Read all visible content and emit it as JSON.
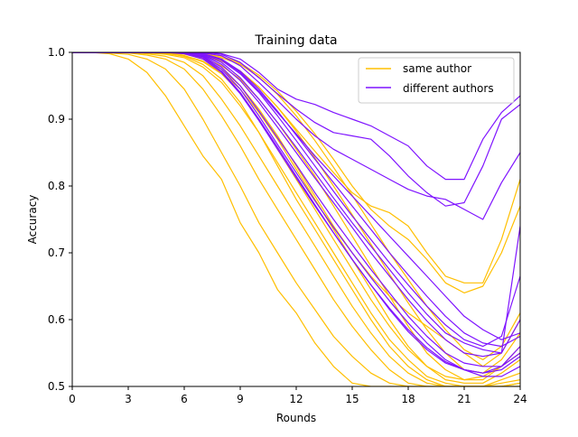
{
  "chart_data": {
    "type": "line",
    "title": "Training data",
    "xlabel": "Rounds",
    "ylabel": "Accuracy",
    "xlim": [
      0,
      24
    ],
    "ylim": [
      0.5,
      1.0
    ],
    "xticks": [
      "0",
      "3",
      "6",
      "9",
      "12",
      "15",
      "18",
      "21",
      "24"
    ],
    "yticks": [
      "0.5",
      "0.6",
      "0.7",
      "0.8",
      "0.9",
      "1.0"
    ],
    "legend": {
      "position": "upper-right",
      "entries": [
        "same author",
        "different authors"
      ]
    },
    "colors": {
      "same author": "#FFBF00",
      "different authors": "#7F14FF"
    },
    "x": [
      0,
      1,
      2,
      3,
      4,
      5,
      6,
      7,
      8,
      9,
      10,
      11,
      12,
      13,
      14,
      15,
      16,
      17,
      18,
      19,
      20,
      21,
      22,
      23,
      24
    ],
    "series": [
      {
        "name": "same author",
        "values": [
          1.0,
          1.0,
          0.998,
          0.99,
          0.97,
          0.935,
          0.89,
          0.845,
          0.81,
          0.745,
          0.7,
          0.645,
          0.61,
          0.565,
          0.53,
          0.505,
          0.5,
          0.5,
          0.5,
          0.5,
          0.5,
          0.5,
          0.5,
          0.5,
          0.5
        ]
      },
      {
        "name": "same author",
        "values": [
          1.0,
          1.0,
          0.999,
          0.997,
          0.99,
          0.975,
          0.945,
          0.9,
          0.85,
          0.8,
          0.745,
          0.7,
          0.655,
          0.615,
          0.575,
          0.545,
          0.52,
          0.505,
          0.5,
          0.5,
          0.5,
          0.5,
          0.5,
          0.5,
          0.5
        ]
      },
      {
        "name": "same author",
        "values": [
          1.0,
          1.0,
          1.0,
          0.999,
          0.996,
          0.99,
          0.975,
          0.945,
          0.905,
          0.86,
          0.81,
          0.765,
          0.72,
          0.675,
          0.63,
          0.59,
          0.555,
          0.525,
          0.505,
          0.5,
          0.5,
          0.5,
          0.5,
          0.5,
          0.505
        ]
      },
      {
        "name": "same author",
        "values": [
          1.0,
          1.0,
          1.0,
          1.0,
          0.998,
          0.994,
          0.985,
          0.965,
          0.93,
          0.89,
          0.845,
          0.8,
          0.755,
          0.71,
          0.665,
          0.62,
          0.58,
          0.545,
          0.52,
          0.505,
          0.5,
          0.5,
          0.5,
          0.505,
          0.51
        ]
      },
      {
        "name": "same author",
        "values": [
          1.0,
          1.0,
          1.0,
          1.0,
          0.999,
          0.997,
          0.992,
          0.978,
          0.955,
          0.92,
          0.88,
          0.835,
          0.79,
          0.745,
          0.7,
          0.655,
          0.61,
          0.57,
          0.54,
          0.515,
          0.505,
          0.5,
          0.5,
          0.51,
          0.52
        ]
      },
      {
        "name": "same author",
        "values": [
          1.0,
          1.0,
          1.0,
          1.0,
          1.0,
          0.998,
          0.995,
          0.987,
          0.97,
          0.945,
          0.91,
          0.87,
          0.825,
          0.78,
          0.735,
          0.69,
          0.645,
          0.6,
          0.56,
          0.53,
          0.51,
          0.505,
          0.505,
          0.52,
          0.54
        ]
      },
      {
        "name": "same author",
        "values": [
          1.0,
          1.0,
          1.0,
          1.0,
          1.0,
          0.999,
          0.997,
          0.992,
          0.98,
          0.96,
          0.93,
          0.895,
          0.855,
          0.815,
          0.77,
          0.725,
          0.68,
          0.635,
          0.59,
          0.55,
          0.525,
          0.51,
          0.51,
          0.53,
          0.56
        ]
      },
      {
        "name": "same author",
        "values": [
          1.0,
          1.0,
          1.0,
          1.0,
          1.0,
          1.0,
          0.998,
          0.995,
          0.987,
          0.972,
          0.948,
          0.918,
          0.882,
          0.842,
          0.8,
          0.757,
          0.713,
          0.668,
          0.625,
          0.585,
          0.55,
          0.525,
          0.52,
          0.54,
          0.58
        ]
      },
      {
        "name": "same author",
        "values": [
          1.0,
          1.0,
          1.0,
          1.0,
          1.0,
          1.0,
          0.999,
          0.997,
          0.992,
          0.982,
          0.963,
          0.937,
          0.905,
          0.868,
          0.828,
          0.786,
          0.743,
          0.7,
          0.66,
          0.62,
          0.585,
          0.555,
          0.54,
          0.56,
          0.61
        ]
      },
      {
        "name": "same author",
        "values": [
          1.0,
          1.0,
          1.0,
          1.0,
          1.0,
          0.999,
          0.994,
          0.982,
          0.96,
          0.925,
          0.88,
          0.83,
          0.78,
          0.735,
          0.69,
          0.645,
          0.6,
          0.56,
          0.53,
          0.51,
          0.5,
          0.5,
          0.5,
          0.5,
          0.505
        ]
      },
      {
        "name": "same author",
        "values": [
          1.0,
          1.0,
          1.0,
          1.0,
          1.0,
          1.0,
          0.998,
          0.99,
          0.975,
          0.95,
          0.915,
          0.875,
          0.83,
          0.785,
          0.74,
          0.7,
          0.665,
          0.635,
          0.61,
          0.59,
          0.57,
          0.55,
          0.53,
          0.55,
          0.6
        ]
      },
      {
        "name": "same author",
        "values": [
          1.0,
          1.0,
          1.0,
          1.0,
          1.0,
          1.0,
          0.999,
          0.996,
          0.988,
          0.972,
          0.948,
          0.918,
          0.885,
          0.852,
          0.82,
          0.79,
          0.77,
          0.76,
          0.74,
          0.7,
          0.665,
          0.655,
          0.655,
          0.72,
          0.81
        ]
      },
      {
        "name": "same author",
        "values": [
          1.0,
          1.0,
          1.0,
          1.0,
          1.0,
          1.0,
          1.0,
          0.998,
          0.994,
          0.984,
          0.966,
          0.942,
          0.912,
          0.878,
          0.84,
          0.8,
          0.765,
          0.74,
          0.72,
          0.69,
          0.655,
          0.64,
          0.65,
          0.7,
          0.77
        ]
      },
      {
        "name": "same author",
        "values": [
          1.0,
          1.0,
          1.0,
          1.0,
          1.0,
          0.999,
          0.995,
          0.986,
          0.968,
          0.94,
          0.9,
          0.855,
          0.81,
          0.765,
          0.72,
          0.675,
          0.63,
          0.59,
          0.555,
          0.53,
          0.515,
          0.51,
          0.515,
          0.53,
          0.55
        ]
      },
      {
        "name": "different authors",
        "values": [
          1.0,
          1.0,
          1.0,
          1.0,
          1.0,
          1.0,
          1.0,
          1.0,
          0.998,
          0.99,
          0.97,
          0.945,
          0.93,
          0.922,
          0.91,
          0.9,
          0.89,
          0.875,
          0.86,
          0.83,
          0.81,
          0.81,
          0.87,
          0.91,
          0.935
        ]
      },
      {
        "name": "different authors",
        "values": [
          1.0,
          1.0,
          1.0,
          1.0,
          1.0,
          1.0,
          1.0,
          1.0,
          0.997,
          0.985,
          0.962,
          0.938,
          0.915,
          0.895,
          0.88,
          0.875,
          0.87,
          0.845,
          0.815,
          0.79,
          0.77,
          0.775,
          0.83,
          0.9,
          0.922
        ]
      },
      {
        "name": "different authors",
        "values": [
          1.0,
          1.0,
          1.0,
          1.0,
          1.0,
          1.0,
          1.0,
          0.999,
          0.995,
          0.98,
          0.955,
          0.928,
          0.9,
          0.875,
          0.855,
          0.84,
          0.825,
          0.81,
          0.795,
          0.785,
          0.78,
          0.765,
          0.75,
          0.805,
          0.85
        ]
      },
      {
        "name": "different authors",
        "values": [
          1.0,
          1.0,
          1.0,
          1.0,
          1.0,
          1.0,
          1.0,
          0.998,
          0.99,
          0.97,
          0.942,
          0.91,
          0.878,
          0.845,
          0.815,
          0.785,
          0.755,
          0.725,
          0.695,
          0.665,
          0.635,
          0.605,
          0.585,
          0.57,
          0.58
        ]
      },
      {
        "name": "different authors",
        "values": [
          1.0,
          1.0,
          1.0,
          1.0,
          1.0,
          1.0,
          0.999,
          0.996,
          0.985,
          0.962,
          0.93,
          0.895,
          0.858,
          0.82,
          0.782,
          0.745,
          0.71,
          0.675,
          0.64,
          0.608,
          0.58,
          0.565,
          0.555,
          0.55,
          0.6
        ]
      },
      {
        "name": "different authors",
        "values": [
          1.0,
          1.0,
          1.0,
          1.0,
          1.0,
          1.0,
          0.999,
          0.994,
          0.978,
          0.95,
          0.912,
          0.872,
          0.832,
          0.79,
          0.75,
          0.712,
          0.675,
          0.64,
          0.605,
          0.575,
          0.55,
          0.535,
          0.53,
          0.53,
          0.56
        ]
      },
      {
        "name": "different authors",
        "values": [
          1.0,
          1.0,
          1.0,
          1.0,
          1.0,
          1.0,
          0.998,
          0.99,
          0.97,
          0.938,
          0.898,
          0.855,
          0.812,
          0.77,
          0.73,
          0.69,
          0.652,
          0.615,
          0.582,
          0.555,
          0.535,
          0.525,
          0.52,
          0.525,
          0.545
        ]
      },
      {
        "name": "different authors",
        "values": [
          1.0,
          1.0,
          1.0,
          1.0,
          1.0,
          1.0,
          0.999,
          0.995,
          0.982,
          0.958,
          0.925,
          0.888,
          0.85,
          0.812,
          0.775,
          0.738,
          0.7,
          0.665,
          0.63,
          0.598,
          0.57,
          0.55,
          0.545,
          0.55,
          0.74
        ]
      },
      {
        "name": "different authors",
        "values": [
          1.0,
          1.0,
          1.0,
          1.0,
          1.0,
          1.0,
          1.0,
          0.997,
          0.988,
          0.968,
          0.94,
          0.905,
          0.868,
          0.83,
          0.792,
          0.755,
          0.72,
          0.685,
          0.652,
          0.62,
          0.592,
          0.57,
          0.56,
          0.575,
          0.665
        ]
      },
      {
        "name": "different authors",
        "values": [
          1.0,
          1.0,
          1.0,
          1.0,
          1.0,
          1.0,
          0.999,
          0.993,
          0.975,
          0.945,
          0.905,
          0.862,
          0.82,
          0.778,
          0.738,
          0.7,
          0.663,
          0.628,
          0.595,
          0.565,
          0.54,
          0.525,
          0.515,
          0.515,
          0.53
        ]
      },
      {
        "name": "different authors",
        "values": [
          1.0,
          1.0,
          1.0,
          1.0,
          1.0,
          1.0,
          1.0,
          0.998,
          0.99,
          0.972,
          0.945,
          0.912,
          0.876,
          0.84,
          0.805,
          0.77,
          0.735,
          0.7,
          0.667,
          0.635,
          0.605,
          0.58,
          0.565,
          0.56,
          0.575
        ]
      },
      {
        "name": "different authors",
        "values": [
          1.0,
          1.0,
          1.0,
          1.0,
          1.0,
          1.0,
          0.999,
          0.992,
          0.972,
          0.94,
          0.9,
          0.858,
          0.815,
          0.772,
          0.73,
          0.69,
          0.652,
          0.617,
          0.585,
          0.558,
          0.537,
          0.525,
          0.52,
          0.53,
          0.55
        ]
      }
    ]
  }
}
